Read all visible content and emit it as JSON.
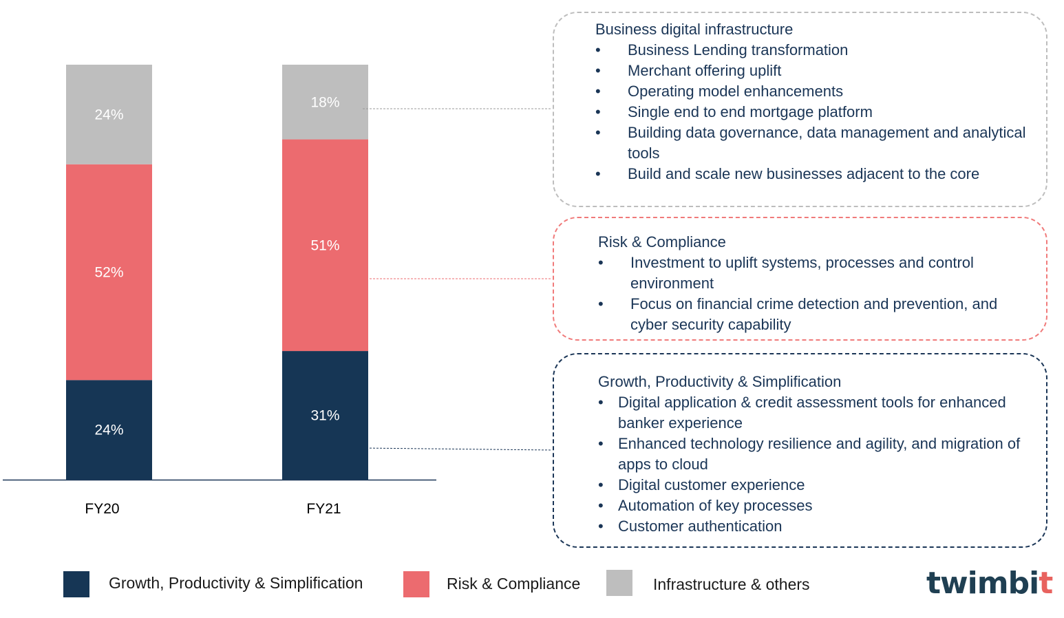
{
  "chart_data": {
    "type": "bar",
    "stacked": true,
    "categories": [
      "FY20",
      "FY21"
    ],
    "series": [
      {
        "name": "Growth, Productivity & Simplification",
        "values": [
          24,
          31
        ],
        "labels": [
          "24%",
          "31%"
        ],
        "color": "#163655"
      },
      {
        "name": "Risk & Compliance",
        "values": [
          52,
          51
        ],
        "labels": [
          "52%",
          "51%"
        ],
        "color": "#ec6b6f"
      },
      {
        "name": "Infrastructure & others",
        "values": [
          24,
          18
        ],
        "labels": [
          "24%",
          "18%"
        ],
        "color": "#bebebe"
      }
    ],
    "ylim": [
      0,
      100
    ],
    "grid": false,
    "legend_position": "bottom"
  },
  "callouts": {
    "infrastructure": {
      "title": "Business digital infrastructure",
      "items": [
        "Business Lending transformation",
        "Merchant offering uplift",
        "Operating model enhancements",
        "Single end to end mortgage platform",
        "Building data governance, data management and analytical tools",
        "Build and scale new businesses adjacent to the core"
      ]
    },
    "risk": {
      "title": "Risk & Compliance",
      "items": [
        "Investment to uplift systems, processes and control environment",
        "Focus on financial crime detection and prevention, and cyber security capability"
      ]
    },
    "growth": {
      "title": "Growth, Productivity & Simplification",
      "items": [
        "Digital application & credit assessment tools for enhanced banker experience",
        "Enhanced technology resilience and agility, and migration of apps to cloud",
        "Digital customer experience",
        "Automation of key processes",
        "Customer authentication"
      ]
    }
  },
  "legend": [
    {
      "label": "Growth, Productivity & Simplification",
      "color": "#163655"
    },
    {
      "label": "Risk & Compliance",
      "color": "#ec6b6f"
    },
    {
      "label": "Infrastructure & others",
      "color": "#bebebe"
    }
  ],
  "logo": {
    "text_main": "twimbi",
    "text_end": "t"
  }
}
